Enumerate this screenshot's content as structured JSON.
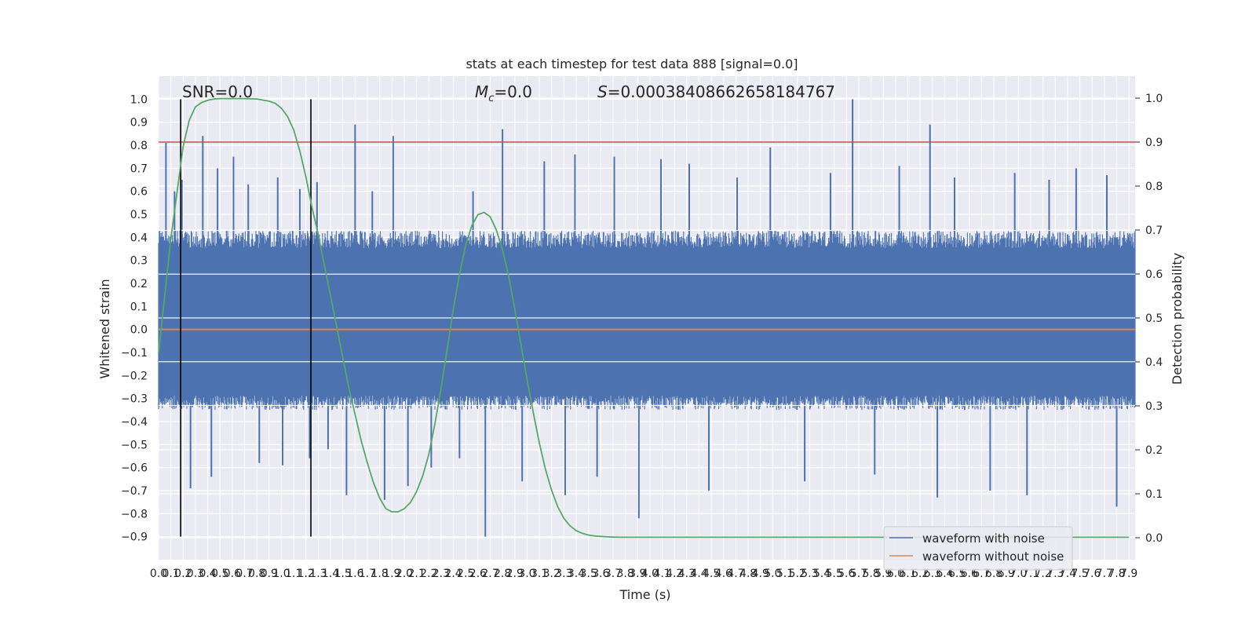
{
  "chart_data": {
    "type": "line",
    "title": "stats at each timestep for test data 888 [signal=0.0]",
    "xlabel": "Time (s)",
    "ylabel": "Whitened strain",
    "ylabel_right": "Detection probability",
    "xlim": [
      0,
      7.95
    ],
    "ylim": [
      -1.0,
      1.1
    ],
    "ylim_right": [
      -0.05,
      1.05
    ],
    "x_ticks": [
      "0.0",
      "0.1",
      "0.2",
      "0.3",
      "0.4",
      "0.5",
      "0.6",
      "0.7",
      "0.8",
      "0.9",
      "1.0",
      "1.1",
      "1.2",
      "1.3",
      "1.4",
      "1.5",
      "1.6",
      "1.7",
      "1.8",
      "1.9",
      "2.0",
      "2.1",
      "2.2",
      "2.3",
      "2.4",
      "2.5",
      "2.6",
      "2.7",
      "2.8",
      "2.9",
      "3.0",
      "3.1",
      "3.2",
      "3.3",
      "3.4",
      "3.5",
      "3.6",
      "3.7",
      "3.8",
      "3.9",
      "4.0",
      "4.1",
      "4.2",
      "4.3",
      "4.4",
      "4.5",
      "4.6",
      "4.7",
      "4.8",
      "4.9",
      "5.0",
      "5.1",
      "5.2",
      "5.3",
      "5.4",
      "5.5",
      "5.6",
      "5.7",
      "5.8",
      "5.9",
      "6.0",
      "6.1",
      "6.2",
      "6.3",
      "6.4",
      "6.5",
      "6.6",
      "6.7",
      "6.8",
      "6.9",
      "7.0",
      "7.1",
      "7.2",
      "7.3",
      "7.4",
      "7.5",
      "7.6",
      "7.7",
      "7.8",
      "7.9"
    ],
    "y_ticks_left": [
      "1.0",
      "0.9",
      "0.8",
      "0.7",
      "0.6",
      "0.5",
      "0.4",
      "0.3",
      "0.2",
      "0.1",
      "0.0",
      "−0.1",
      "−0.2",
      "−0.3",
      "−0.4",
      "−0.5",
      "−0.6",
      "−0.7",
      "−0.8",
      "−0.9"
    ],
    "y_ticks_right": [
      "1.0",
      "0.9",
      "0.8",
      "0.7",
      "0.6",
      "0.5",
      "0.4",
      "0.3",
      "0.2",
      "0.1",
      "0.0"
    ],
    "annotations": {
      "snr": "SNR=0.0",
      "mc_symbol": "M",
      "mc_sub": "c",
      "mc_value": "=0.0",
      "s_symbol": "S",
      "s_value": "=0.00038408662658184767"
    },
    "legend": {
      "placement": "lower-right",
      "entries": [
        "waveform with noise",
        "waveform without noise"
      ]
    },
    "threshold_probability": 0.9,
    "vertical_lines": [
      0.18,
      1.24
    ],
    "series": [
      {
        "name": "waveform with noise",
        "color": "#4c72b0",
        "noise_band": [
          -0.35,
          0.43
        ],
        "spikes": [
          {
            "x": 0.06,
            "y": 0.81
          },
          {
            "x": 0.13,
            "y": 0.6
          },
          {
            "x": 0.19,
            "y": 0.65
          },
          {
            "x": 0.26,
            "y": -0.69
          },
          {
            "x": 0.36,
            "y": 0.84
          },
          {
            "x": 0.43,
            "y": -0.64
          },
          {
            "x": 0.48,
            "y": 0.7
          },
          {
            "x": 0.61,
            "y": 0.75
          },
          {
            "x": 0.73,
            "y": 0.63
          },
          {
            "x": 0.82,
            "y": -0.58
          },
          {
            "x": 0.97,
            "y": 0.66
          },
          {
            "x": 1.01,
            "y": -0.59
          },
          {
            "x": 1.15,
            "y": 0.61
          },
          {
            "x": 1.23,
            "y": -0.56
          },
          {
            "x": 1.29,
            "y": 0.64
          },
          {
            "x": 1.38,
            "y": -0.52
          },
          {
            "x": 1.53,
            "y": -0.72
          },
          {
            "x": 1.6,
            "y": 0.89
          },
          {
            "x": 1.74,
            "y": 0.6
          },
          {
            "x": 1.84,
            "y": -0.74
          },
          {
            "x": 1.91,
            "y": 0.84
          },
          {
            "x": 2.03,
            "y": -0.68
          },
          {
            "x": 2.22,
            "y": -0.6
          },
          {
            "x": 2.45,
            "y": -0.56
          },
          {
            "x": 2.56,
            "y": 0.6
          },
          {
            "x": 2.66,
            "y": -0.9
          },
          {
            "x": 2.8,
            "y": 0.87
          },
          {
            "x": 2.96,
            "y": -0.66
          },
          {
            "x": 3.14,
            "y": 0.73
          },
          {
            "x": 3.31,
            "y": -0.72
          },
          {
            "x": 3.39,
            "y": 0.76
          },
          {
            "x": 3.57,
            "y": -0.64
          },
          {
            "x": 3.71,
            "y": 0.75
          },
          {
            "x": 3.91,
            "y": -0.82
          },
          {
            "x": 4.09,
            "y": 0.74
          },
          {
            "x": 4.32,
            "y": 0.72
          },
          {
            "x": 4.48,
            "y": -0.7
          },
          {
            "x": 4.71,
            "y": 0.66
          },
          {
            "x": 4.98,
            "y": 0.79
          },
          {
            "x": 5.26,
            "y": -0.66
          },
          {
            "x": 5.47,
            "y": 0.68
          },
          {
            "x": 5.65,
            "y": 1.0
          },
          {
            "x": 5.83,
            "y": -0.63
          },
          {
            "x": 6.03,
            "y": 0.71
          },
          {
            "x": 6.28,
            "y": 0.89
          },
          {
            "x": 6.34,
            "y": -0.73
          },
          {
            "x": 6.48,
            "y": 0.66
          },
          {
            "x": 6.77,
            "y": -0.7
          },
          {
            "x": 6.97,
            "y": 0.68
          },
          {
            "x": 7.07,
            "y": -0.72
          },
          {
            "x": 7.25,
            "y": 0.65
          },
          {
            "x": 7.47,
            "y": 0.7
          },
          {
            "x": 7.72,
            "y": 0.67
          },
          {
            "x": 7.8,
            "y": -0.77
          }
        ]
      },
      {
        "name": "waveform without noise",
        "color": "#dd8452",
        "x": [
          0.0,
          7.95
        ],
        "y": [
          0.0,
          0.0
        ]
      },
      {
        "name": "",
        "axis": "right",
        "color": "#55a868",
        "x": [
          0.0,
          0.1,
          0.2,
          0.25,
          0.3,
          0.35,
          0.4,
          0.45,
          0.5,
          0.6,
          0.7,
          0.8,
          0.9,
          0.95,
          1.0,
          1.05,
          1.1,
          1.15,
          1.2,
          1.25,
          1.3,
          1.35,
          1.4,
          1.45,
          1.5,
          1.55,
          1.6,
          1.65,
          1.7,
          1.75,
          1.8,
          1.85,
          1.9,
          1.95,
          2.0,
          2.05,
          2.1,
          2.15,
          2.2,
          2.25,
          2.3,
          2.35,
          2.4,
          2.45,
          2.5,
          2.55,
          2.6,
          2.65,
          2.7,
          2.75,
          2.8,
          2.85,
          2.9,
          2.95,
          3.0,
          3.05,
          3.1,
          3.15,
          3.2,
          3.25,
          3.3,
          3.35,
          3.4,
          3.45,
          3.5,
          3.55,
          3.6,
          3.65,
          3.7,
          3.75,
          3.8,
          3.85,
          3.9,
          3.95,
          4.0,
          4.05,
          4.1,
          4.15,
          4.2,
          4.3,
          4.4,
          4.6,
          4.8,
          5.0,
          5.5,
          6.0,
          6.5,
          7.0,
          7.5,
          7.9
        ],
        "y": [
          0.42,
          0.68,
          0.89,
          0.95,
          0.98,
          0.99,
          0.995,
          0.998,
          0.999,
          0.999,
          0.999,
          0.998,
          0.993,
          0.988,
          0.977,
          0.958,
          0.928,
          0.88,
          0.82,
          0.75,
          0.69,
          0.62,
          0.55,
          0.48,
          0.41,
          0.34,
          0.28,
          0.22,
          0.17,
          0.125,
          0.09,
          0.066,
          0.059,
          0.059,
          0.066,
          0.08,
          0.105,
          0.14,
          0.19,
          0.26,
          0.34,
          0.43,
          0.52,
          0.6,
          0.665,
          0.71,
          0.735,
          0.74,
          0.73,
          0.7,
          0.655,
          0.595,
          0.52,
          0.44,
          0.36,
          0.285,
          0.215,
          0.155,
          0.108,
          0.07,
          0.044,
          0.027,
          0.016,
          0.01,
          0.006,
          0.004,
          0.003,
          0.002,
          0.0015,
          0.001,
          0.001,
          0.001,
          0.001,
          0.001,
          0.001,
          0.001,
          0.001,
          0.001,
          0.001,
          0.001,
          0.001,
          0.001,
          0.001,
          0.001,
          0.001,
          0.001,
          0.001,
          0.001,
          0.001,
          0.001
        ]
      }
    ]
  }
}
